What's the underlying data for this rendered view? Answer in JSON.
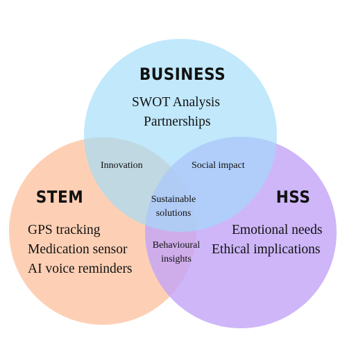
{
  "colors": {
    "business": "#9fdcf9",
    "stem": "#fcc4a2",
    "hss": "#c2a4f8"
  },
  "business": {
    "title": "BUSINESS",
    "items": [
      "SWOT  Analysis",
      "Partnerships"
    ]
  },
  "stem": {
    "title": "STEM",
    "items": [
      "GPS tracking",
      "Medication sensor",
      "AI voice reminders"
    ]
  },
  "hss": {
    "title": "HSS",
    "items": [
      "Emotional needs",
      "Ethical implications"
    ]
  },
  "intersections": {
    "business_stem": "Innovation",
    "business_hss": "Social impact",
    "all_line1": "Sustainable",
    "all_line2": "solutions",
    "stem_hss_line1": "Behavioural",
    "stem_hss_line2": "insights"
  }
}
